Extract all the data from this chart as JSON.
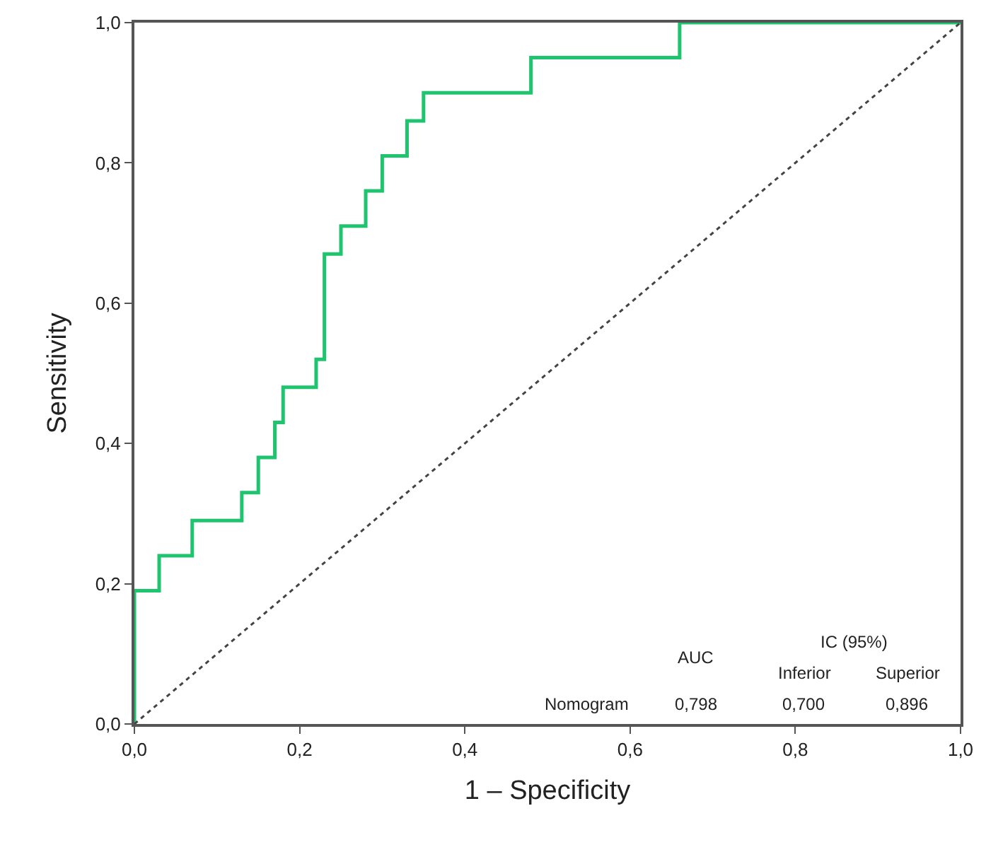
{
  "chart_data": {
    "type": "step",
    "xlabel": "1 – Specificity",
    "ylabel": "Sensitivity",
    "series": [
      {
        "color": "#1fc46e",
        "x": [
          0,
          0,
          0.03,
          0.07,
          0.13,
          0.15,
          0.17,
          0.18,
          0.22,
          0.23,
          0.25,
          0.28,
          0.3,
          0.33,
          0.35,
          0.48,
          0.66,
          1.0
        ],
        "values": [
          0,
          0.19,
          0.24,
          0.29,
          0.33,
          0.38,
          0.43,
          0.48,
          0.52,
          0.67,
          0.71,
          0.76,
          0.81,
          0.86,
          0.9,
          0.95,
          1.0,
          1.0
        ]
      },
      {
        "type": "line",
        "color": "#444444",
        "line_style": "dotted",
        "x": [
          0,
          1
        ],
        "values": [
          0,
          1
        ]
      }
    ],
    "xlim": [
      0,
      1
    ],
    "ylim": [
      0,
      1
    ],
    "xticks": [
      {
        "value": 0,
        "label": "0,0"
      },
      {
        "value": 0.2,
        "label": "0,2"
      },
      {
        "value": 0.4,
        "label": "0,4"
      },
      {
        "value": 0.6,
        "label": "0,6"
      },
      {
        "value": 0.8,
        "label": "0,8"
      },
      {
        "value": 1,
        "label": "1,0"
      }
    ],
    "yticks": [
      {
        "value": 0,
        "label": "0,0"
      },
      {
        "value": 0.2,
        "label": "0,2"
      },
      {
        "value": 0.4,
        "label": "0,4"
      },
      {
        "value": 0.6,
        "label": "0,6"
      },
      {
        "value": 0.8,
        "label": "0,8"
      },
      {
        "value": 1,
        "label": "1,0"
      }
    ],
    "marker": "none",
    "annotations": [
      "AUC",
      "IC (95%)",
      "Inferior",
      "Superior",
      "Nomogram",
      "0,798",
      "0,700",
      "0,896"
    ]
  }
}
